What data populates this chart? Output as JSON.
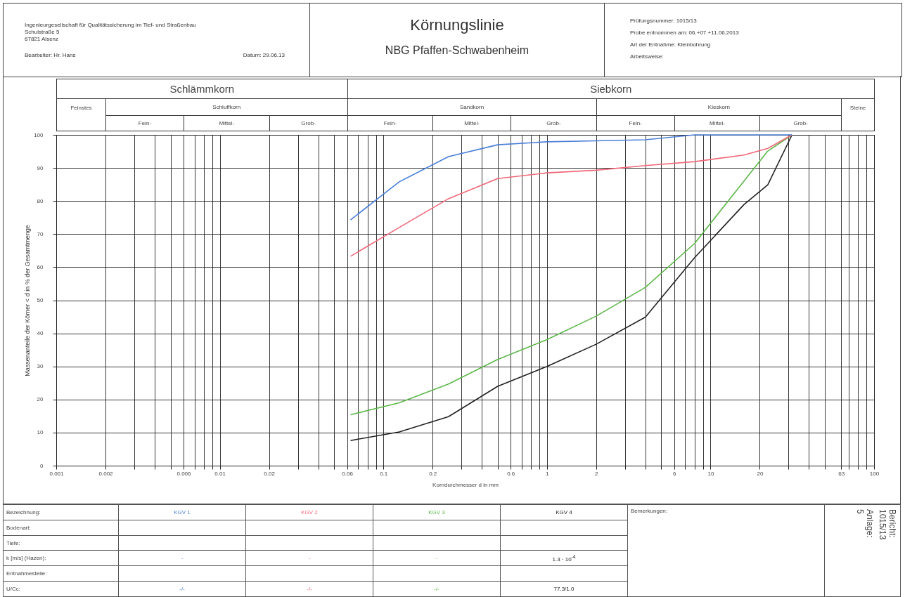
{
  "chart_data": {
    "type": "line",
    "title": "Körnungslinie",
    "subtitle": "NBG Pfaffen-Schwabenheim",
    "xlabel": "Korndurchmesser d in mm",
    "ylabel": "Massenanteile der Körner < d in % der Gesamtmenge",
    "log": "x",
    "grid": true,
    "marker": "none",
    "line_style": "solid",
    "xlim": [
      0.001,
      100
    ],
    "ylim": [
      0,
      100
    ],
    "xticks": [
      0.001,
      0.002,
      {
        "value": 0.003,
        "label": null
      },
      {
        "value": 0.004,
        "label": null
      },
      {
        "value": 0.005,
        "label": null
      },
      0.006,
      {
        "value": 0.007,
        "label": null
      },
      {
        "value": 0.008,
        "label": null
      },
      {
        "value": 0.009,
        "label": null
      },
      0.01,
      0.02,
      {
        "value": 0.03,
        "label": null
      },
      {
        "value": 0.04,
        "label": null
      },
      {
        "value": 0.05,
        "label": null
      },
      0.06,
      {
        "value": 0.07,
        "label": null
      },
      {
        "value": 0.08,
        "label": null
      },
      {
        "value": 0.09,
        "label": null
      },
      0.1,
      0.2,
      {
        "value": 0.3,
        "label": null
      },
      {
        "value": 0.4,
        "label": null
      },
      {
        "value": 0.5,
        "label": null
      },
      0.6,
      {
        "value": 0.7,
        "label": null
      },
      {
        "value": 0.8,
        "label": null
      },
      {
        "value": 0.9,
        "label": null
      },
      1,
      2,
      {
        "value": 3,
        "label": null
      },
      {
        "value": 4,
        "label": null
      },
      {
        "value": 5,
        "label": null
      },
      6,
      {
        "value": 7,
        "label": null
      },
      {
        "value": 8,
        "label": null
      },
      {
        "value": 9,
        "label": null
      },
      10,
      20,
      {
        "value": 30,
        "label": null
      },
      {
        "value": 40,
        "label": null
      },
      {
        "value": 50,
        "label": null
      },
      63,
      {
        "value": 70,
        "label": null
      },
      {
        "value": 80,
        "label": null
      },
      {
        "value": 90,
        "label": null
      },
      100
    ],
    "yticks": [
      0,
      10,
      20,
      30,
      40,
      50,
      60,
      70,
      80,
      90,
      100
    ],
    "x": [
      0.063,
      0.125,
      0.25,
      0.5,
      1,
      2,
      4,
      8,
      16,
      22.4,
      31.5
    ],
    "series": [
      {
        "name": "KGV 1",
        "color": "#4a7fd8",
        "values": [
          74.3,
          85.8,
          93.4,
          97.0,
          97.9,
          98.2,
          98.5,
          100,
          100,
          100,
          100
        ]
      },
      {
        "name": "KGV 2",
        "color": "#f06878",
        "values": [
          63.3,
          72.0,
          80.7,
          86.8,
          88.5,
          89.3,
          90.7,
          91.9,
          93.9,
          95.9,
          100
        ]
      },
      {
        "name": "KGV 3",
        "color": "#5cb848",
        "values": [
          15.4,
          19.0,
          24.7,
          32.1,
          38.1,
          45.2,
          53.9,
          67.2,
          86.0,
          95.1,
          100
        ]
      },
      {
        "name": "KGV 4",
        "color": "#222222",
        "values": [
          7.6,
          10.2,
          14.8,
          24.0,
          30.0,
          36.7,
          44.9,
          62.9,
          78.9,
          84.9,
          100
        ]
      }
    ],
    "annotations": [
      "Ingenieurgesellschaft für Qualitätssicherung im Tief- und Straßenbau",
      "Schulstraße 5",
      "67821 Alsenz",
      "Bearbeiter: Hr. Hans",
      "Datum: 29.06.13",
      "Prüfungsnummer: 1015/13",
      "Probe entnommen am: 06.+07.+11.06.2013",
      "Art der Entnahme: Kleinbohrung",
      "Arbeitsweise:",
      "Bezeichnung:",
      "Bodenart:",
      "Tiefe:",
      "k [m/s] (Hazen):",
      "Entnahmestelle:",
      "U/Cc:",
      "-",
      "-",
      "-",
      "1.3 · 10$^{-4}$",
      "-/-",
      "-/-",
      "-/-",
      "77.3/1.0",
      "Bemerkungen:",
      "Bericht:",
      "1015/13",
      "Anlage:",
      "5",
      "Schlämmkorn",
      "Siebkorn",
      "Feinstes",
      "Schluffkorn",
      "Sandkorn",
      "Kieskorn",
      "Steine",
      "Fein-",
      "Mittel-",
      "Grob-",
      "Fein-",
      "Mittel-",
      "Grob-",
      "Fein-",
      "Mittel-",
      "Grob-"
    ]
  }
}
